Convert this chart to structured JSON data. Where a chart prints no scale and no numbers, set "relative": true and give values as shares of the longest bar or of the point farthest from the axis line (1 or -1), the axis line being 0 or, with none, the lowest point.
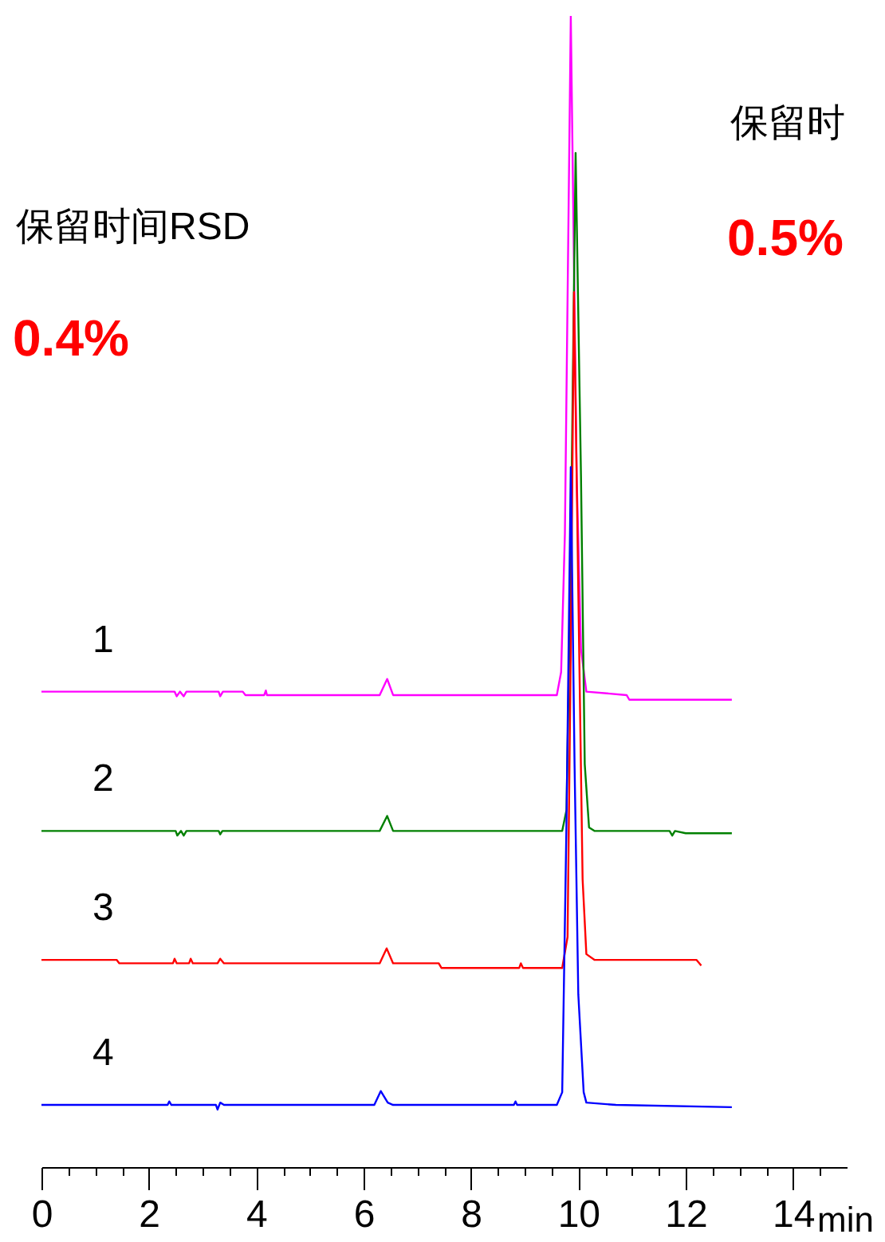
{
  "chart_data": {
    "type": "line",
    "relative": true,
    "xlabel": "min",
    "xlim": [
      0,
      15
    ],
    "xticks": [
      0,
      {
        "value": 0.5,
        "label": null
      },
      {
        "value": 1,
        "label": null
      },
      {
        "value": 1.5,
        "label": null
      },
      2,
      {
        "value": 2.5,
        "label": null
      },
      {
        "value": 3,
        "label": null
      },
      {
        "value": 3.5,
        "label": null
      },
      4,
      {
        "value": 4.5,
        "label": null
      },
      {
        "value": 5,
        "label": null
      },
      {
        "value": 5.5,
        "label": null
      },
      6,
      {
        "value": 6.5,
        "label": null
      },
      {
        "value": 7,
        "label": null
      },
      {
        "value": 7.5,
        "label": null
      },
      8,
      {
        "value": 8.5,
        "label": null
      },
      {
        "value": 9,
        "label": null
      },
      {
        "value": 9.5,
        "label": null
      },
      10,
      {
        "value": 10.5,
        "label": null
      },
      {
        "value": 11,
        "label": null
      },
      {
        "value": 11.5,
        "label": null
      },
      12,
      {
        "value": 12.5,
        "label": null
      },
      {
        "value": 13,
        "label": null
      },
      {
        "value": 13.5,
        "label": null
      },
      14,
      {
        "value": 14.5,
        "label": null
      }
    ],
    "grid": false,
    "annotations": [
      "保留时间RSD",
      "0.4%",
      "保留时",
      "0.5%"
    ],
    "series": [
      {
        "name": "1",
        "color": "#ff00ff",
        "x": [
          0,
          2.48,
          2.52,
          2.58,
          2.65,
          2.7,
          3.3,
          3.33,
          3.38,
          3.75,
          3.8,
          4.15,
          4.18,
          4.2,
          6.3,
          6.44,
          6.55,
          9.6,
          9.68,
          9.75,
          9.86,
          9.97,
          10.05,
          10.15,
          10.9,
          10.95,
          12.86
        ],
        "values": [
          0.413,
          0.413,
          0.409,
          0.413,
          0.409,
          0.413,
          0.413,
          0.409,
          0.413,
          0.413,
          0.41,
          0.41,
          0.414,
          0.41,
          0.41,
          0.424,
          0.41,
          0.41,
          0.43,
          0.55,
          1.0,
          0.6,
          0.45,
          0.413,
          0.41,
          0.406,
          0.406
        ]
      },
      {
        "name": "2",
        "color": "#008000",
        "x": [
          0,
          2.5,
          2.53,
          2.6,
          2.65,
          2.7,
          3.3,
          3.33,
          3.37,
          6.3,
          6.44,
          6.55,
          9.7,
          9.78,
          9.85,
          9.95,
          10.05,
          10.12,
          10.2,
          10.3,
          11.7,
          11.75,
          11.8,
          12.0,
          12.86
        ],
        "values": [
          0.292,
          0.292,
          0.288,
          0.292,
          0.288,
          0.292,
          0.292,
          0.289,
          0.292,
          0.292,
          0.305,
          0.292,
          0.292,
          0.31,
          0.5,
          0.881,
          0.6,
          0.35,
          0.295,
          0.292,
          0.292,
          0.288,
          0.292,
          0.29,
          0.29
        ]
      },
      {
        "name": "3",
        "color": "#ff0000",
        "x": [
          0,
          1.4,
          1.45,
          2.45,
          2.48,
          2.52,
          2.75,
          2.78,
          2.82,
          3.28,
          3.33,
          3.4,
          6.3,
          6.43,
          6.55,
          7.4,
          7.45,
          8.9,
          8.93,
          8.97,
          9.7,
          9.8,
          9.86,
          9.92,
          10.0,
          10.08,
          10.15,
          10.3,
          12.2,
          12.29
        ],
        "values": [
          0.18,
          0.18,
          0.177,
          0.177,
          0.181,
          0.177,
          0.177,
          0.181,
          0.177,
          0.177,
          0.181,
          0.177,
          0.177,
          0.19,
          0.177,
          0.177,
          0.173,
          0.173,
          0.177,
          0.173,
          0.173,
          0.2,
          0.45,
          0.76,
          0.5,
          0.25,
          0.185,
          0.18,
          0.18,
          0.175
        ]
      },
      {
        "name": "4",
        "color": "#0000ff",
        "x": [
          0,
          2.35,
          2.38,
          2.42,
          3.25,
          3.28,
          3.33,
          3.4,
          6.2,
          6.32,
          6.45,
          6.55,
          8.8,
          8.83,
          8.86,
          9.6,
          9.7,
          9.78,
          9.86,
          9.93,
          10.0,
          10.1,
          10.15,
          10.7,
          12.86
        ],
        "values": [
          0.054,
          0.054,
          0.057,
          0.054,
          0.054,
          0.05,
          0.056,
          0.054,
          0.054,
          0.066,
          0.056,
          0.054,
          0.054,
          0.057,
          0.054,
          0.054,
          0.065,
          0.3,
          0.608,
          0.35,
          0.15,
          0.065,
          0.056,
          0.054,
          0.052
        ]
      }
    ]
  }
}
